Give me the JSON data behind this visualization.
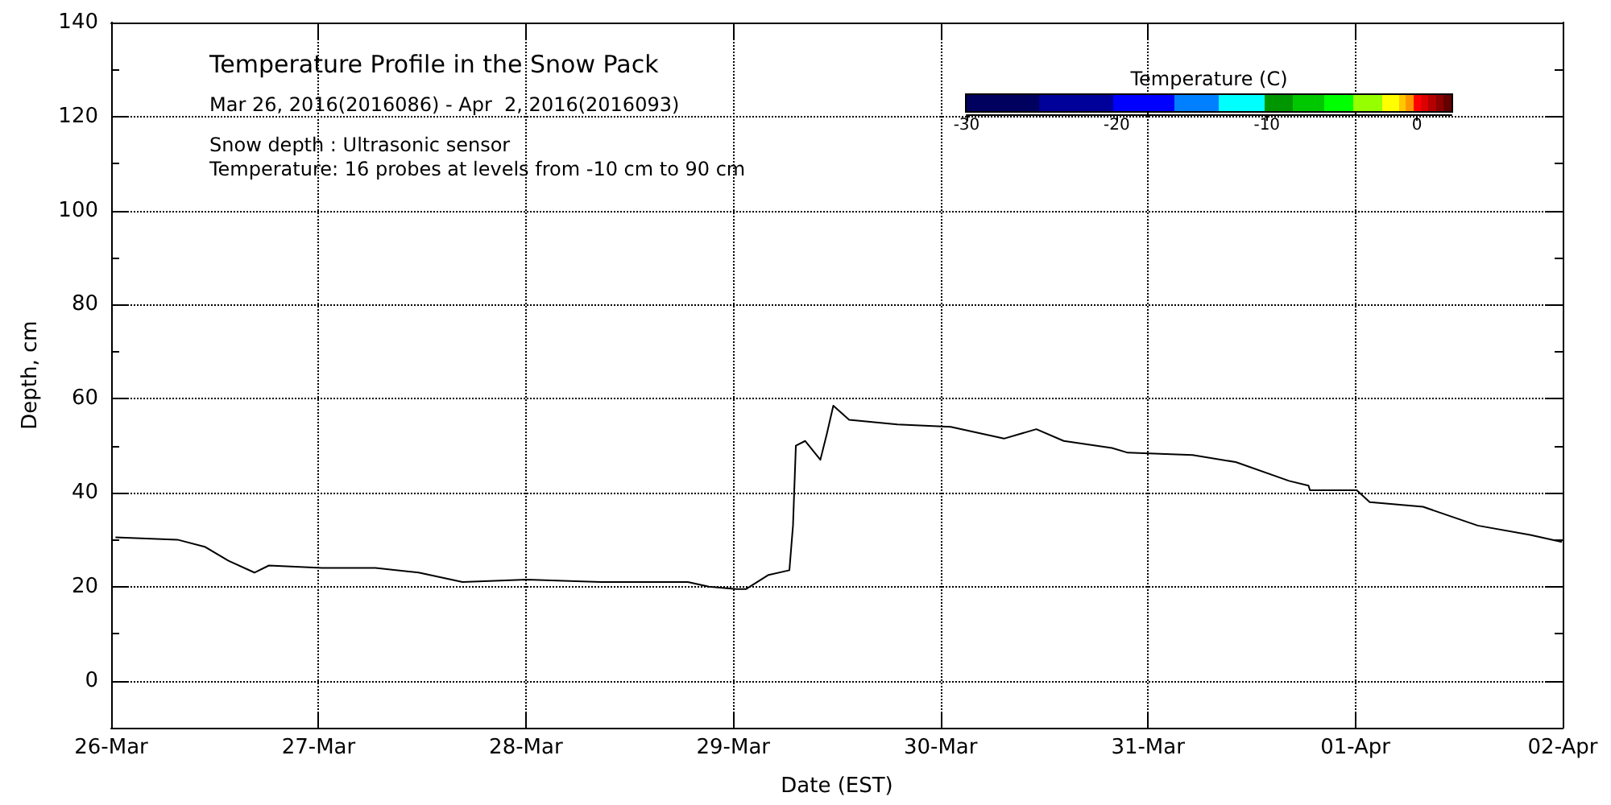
{
  "chart_data": {
    "type": "line",
    "title": "Temperature Profile in the Snow Pack",
    "subtitle": "Mar 26, 2016(2016086) - Apr  2, 2016(2016093)",
    "annotations": [
      "Snow depth : Ultrasonic sensor",
      "Temperature: 16 probes at levels from -10 cm to 90 cm"
    ],
    "xlabel": "Date (EST)",
    "ylabel": "Depth, cm",
    "x2label": "Temperature (C)",
    "x2lim": [
      -30,
      2.3
    ],
    "x2ticks": [
      -30,
      -20,
      -10,
      0
    ],
    "x": [
      "2016-03-26T00:30",
      "2016-03-26T07:40",
      "2016-03-26T10:50",
      "2016-03-26T13:35",
      "2016-03-26T16:35",
      "2016-03-26T18:15",
      "2016-03-27T00:25",
      "2016-03-27T06:35",
      "2016-03-27T11:35",
      "2016-03-27T16:40",
      "2016-03-28T00:05",
      "2016-03-28T08:40",
      "2016-03-28T18:45",
      "2016-03-28T21:10",
      "2016-03-29T00:20",
      "2016-03-29T01:30",
      "2016-03-29T04:05",
      "2016-03-29T06:30",
      "2016-03-29T06:55",
      "2016-03-29T07:15",
      "2016-03-29T08:20",
      "2016-03-29T10:05",
      "2016-03-29T10:50",
      "2016-03-29T11:35",
      "2016-03-29T13:25",
      "2016-03-29T19:00",
      "2016-03-30T01:10",
      "2016-03-30T07:20",
      "2016-03-30T11:05",
      "2016-03-30T14:15",
      "2016-03-30T19:50",
      "2016-03-30T21:40",
      "2016-03-31T05:10",
      "2016-03-31T10:10",
      "2016-03-31T16:20",
      "2016-03-31T18:35",
      "2016-03-31T18:45",
      "2016-04-01T00:10",
      "2016-04-01T01:40",
      "2016-04-01T07:50",
      "2016-04-01T14:10",
      "2016-04-01T20:15",
      "2016-04-01T23:55"
    ],
    "series": [
      {
        "color": "#000000",
        "values": [
          30.5,
          30,
          28.5,
          25.5,
          23,
          24.5,
          24,
          24,
          23,
          21,
          21.5,
          21,
          21,
          20,
          19.5,
          19.5,
          22.5,
          23.5,
          33,
          50,
          51,
          47,
          52.5,
          58.5,
          55.5,
          54.5,
          54,
          51.5,
          53.5,
          51,
          49.5,
          48.5,
          48,
          46.5,
          42.5,
          41.5,
          40.5,
          40.5,
          38,
          37,
          33,
          31,
          29.5
        ]
      }
    ],
    "xlim": [
      "2016-03-26",
      "2016-04-02"
    ],
    "xticks": [
      {
        "value": "2016-03-26",
        "label": "26-Mar"
      },
      {
        "value": "2016-03-27",
        "label": "27-Mar"
      },
      {
        "value": "2016-03-28",
        "label": "28-Mar"
      },
      {
        "value": "2016-03-29",
        "label": "29-Mar"
      },
      {
        "value": "2016-03-30",
        "label": "30-Mar"
      },
      {
        "value": "2016-03-31",
        "label": "31-Mar"
      },
      {
        "value": "2016-04-01",
        "label": "01-Apr"
      },
      {
        "value": "2016-04-02",
        "label": "02-Apr"
      }
    ],
    "ylim": [
      -10,
      140
    ],
    "yticks": [
      {
        "value": -10,
        "label": null
      },
      0,
      {
        "value": 10,
        "label": null
      },
      20,
      {
        "value": 30,
        "label": null
      },
      40,
      {
        "value": 50,
        "label": null
      },
      60,
      {
        "value": 70,
        "label": null
      },
      80,
      {
        "value": 90,
        "label": null
      },
      100,
      {
        "value": 110,
        "label": null
      },
      120,
      {
        "value": 130,
        "label": null
      },
      140
    ],
    "grid": true,
    "marker": "none",
    "line_style": "solid"
  }
}
